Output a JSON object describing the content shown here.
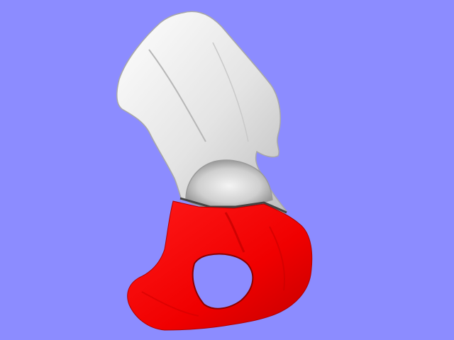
{
  "viewport": {
    "background_color": "#8c8cff"
  },
  "model": {
    "segments": [
      {
        "name": "upper-segment",
        "color": "#e6e6e6",
        "shade_color": "#9a9a9a"
      },
      {
        "name": "lower-segment",
        "color": "#ff0000",
        "shade_color": "#b00000"
      }
    ]
  }
}
